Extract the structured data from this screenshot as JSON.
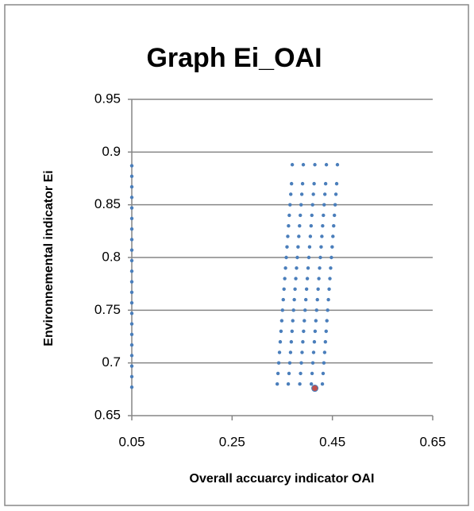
{
  "chart_data": {
    "type": "scatter",
    "title": "Graph Ei_OAI",
    "x_label": "Overall accuarcy indicator OAI",
    "y_label": "Environnemental indicator Ei",
    "xlim": [
      0.05,
      0.65
    ],
    "xticks": [
      0.05,
      0.25,
      0.45,
      0.65
    ],
    "ylim": [
      0.65,
      0.95
    ],
    "yticks": [
      0.65,
      0.7,
      0.75,
      0.8,
      0.85,
      0.9,
      0.95
    ],
    "grid": true,
    "series": [
      {
        "color": "#4a7ebb",
        "x": [
          0.05,
          0.05,
          0.05,
          0.05,
          0.05,
          0.05,
          0.05,
          0.05,
          0.05,
          0.05,
          0.05,
          0.05,
          0.05,
          0.05,
          0.05,
          0.05,
          0.05,
          0.05,
          0.05,
          0.05,
          0.05,
          0.05,
          0.34,
          0.362,
          0.385,
          0.408,
          0.43,
          0.3415,
          0.3635,
          0.3865,
          0.4095,
          0.4315,
          0.343,
          0.365,
          0.388,
          0.411,
          0.433,
          0.3445,
          0.3665,
          0.3895,
          0.4125,
          0.4345,
          0.346,
          0.368,
          0.391,
          0.414,
          0.436,
          0.3475,
          0.3695,
          0.3925,
          0.4155,
          0.4375,
          0.349,
          0.371,
          0.394,
          0.417,
          0.439,
          0.3505,
          0.3725,
          0.3955,
          0.4185,
          0.4405,
          0.352,
          0.374,
          0.397,
          0.42,
          0.442,
          0.3535,
          0.3755,
          0.3985,
          0.4215,
          0.4435,
          0.355,
          0.377,
          0.4,
          0.423,
          0.445,
          0.3565,
          0.3785,
          0.4015,
          0.4245,
          0.4465,
          0.358,
          0.38,
          0.403,
          0.426,
          0.448,
          0.3595,
          0.3815,
          0.4045,
          0.4275,
          0.4495,
          0.361,
          0.383,
          0.406,
          0.429,
          0.451,
          0.3625,
          0.3845,
          0.4075,
          0.4305,
          0.4525,
          0.364,
          0.386,
          0.409,
          0.432,
          0.454,
          0.3655,
          0.3875,
          0.4105,
          0.4335,
          0.4555,
          0.367,
          0.389,
          0.412,
          0.435,
          0.457,
          0.3685,
          0.3905,
          0.4135,
          0.4365,
          0.4585,
          0.37,
          0.392,
          0.415,
          0.438,
          0.46
        ],
        "values": [
          0.677,
          0.687,
          0.697,
          0.707,
          0.717,
          0.727,
          0.737,
          0.747,
          0.757,
          0.767,
          0.777,
          0.787,
          0.797,
          0.807,
          0.817,
          0.827,
          0.837,
          0.847,
          0.857,
          0.867,
          0.877,
          0.887,
          0.68,
          0.68,
          0.68,
          0.68,
          0.68,
          0.69,
          0.69,
          0.69,
          0.69,
          0.69,
          0.7,
          0.7,
          0.7,
          0.7,
          0.7,
          0.71,
          0.71,
          0.71,
          0.71,
          0.71,
          0.72,
          0.72,
          0.72,
          0.72,
          0.72,
          0.73,
          0.73,
          0.73,
          0.73,
          0.73,
          0.74,
          0.74,
          0.74,
          0.74,
          0.74,
          0.75,
          0.75,
          0.75,
          0.75,
          0.75,
          0.76,
          0.76,
          0.76,
          0.76,
          0.76,
          0.77,
          0.77,
          0.77,
          0.77,
          0.77,
          0.78,
          0.78,
          0.78,
          0.78,
          0.78,
          0.79,
          0.79,
          0.79,
          0.79,
          0.79,
          0.8,
          0.8,
          0.8,
          0.8,
          0.8,
          0.81,
          0.81,
          0.81,
          0.81,
          0.81,
          0.82,
          0.82,
          0.82,
          0.82,
          0.82,
          0.83,
          0.83,
          0.83,
          0.83,
          0.83,
          0.84,
          0.84,
          0.84,
          0.84,
          0.84,
          0.85,
          0.85,
          0.85,
          0.85,
          0.85,
          0.86,
          0.86,
          0.86,
          0.86,
          0.86,
          0.87,
          0.87,
          0.87,
          0.87,
          0.87,
          0.888,
          0.888,
          0.888,
          0.888,
          0.888
        ]
      },
      {
        "color": "#c0504d",
        "x": [
          0.415
        ],
        "values": [
          0.676
        ]
      }
    ]
  }
}
